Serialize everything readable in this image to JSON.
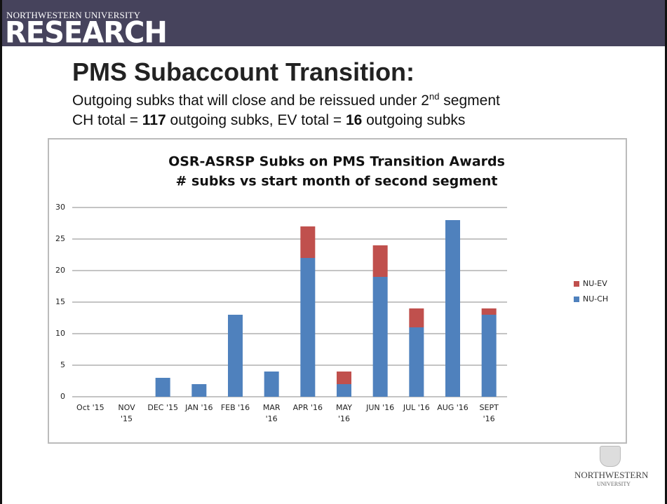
{
  "header": {
    "university": "NORTHWESTERN UNIVERSITY",
    "unit": "RESEARCH"
  },
  "slide_title": "PMS Subaccount Transition:",
  "subtitle_lines": [
    [
      "Outgoing subks that will close and be reissued under 2",
      "nd",
      " segment"
    ],
    [
      "CH total = ",
      "117",
      " outgoing subks,  EV total = ",
      "16",
      " outgoing subks"
    ]
  ],
  "footer": {
    "name": "NORTHWESTERN",
    "sub": "UNIVERSITY"
  },
  "chart_data": {
    "type": "stacked_bar",
    "title": "OSR-ASRSP Subks on PMS Transition Awards",
    "subtitle": "# subks vs start month of second segment",
    "categories": [
      "Oct '15",
      "NOV\n'15",
      "DEC '15",
      "JAN '16",
      "FEB '16",
      "MAR\n'16",
      "APR '16",
      "MAY\n'16",
      "JUN '16",
      "JUL '16",
      "AUG '16",
      "SEPT\n'16"
    ],
    "series": [
      {
        "name": "NU-CH",
        "color": "#4f81bd",
        "values": [
          0,
          0,
          3,
          2,
          13,
          4,
          22,
          2,
          19,
          11,
          28,
          13
        ]
      },
      {
        "name": "NU-EV",
        "color": "#c0504d",
        "values": [
          0,
          0,
          0,
          0,
          0,
          0,
          5,
          2,
          5,
          3,
          0,
          1
        ]
      }
    ],
    "ylim": [
      0,
      30
    ],
    "yticks": [
      0,
      5,
      10,
      15,
      20,
      25,
      30
    ],
    "grid": true,
    "legend": "right"
  }
}
